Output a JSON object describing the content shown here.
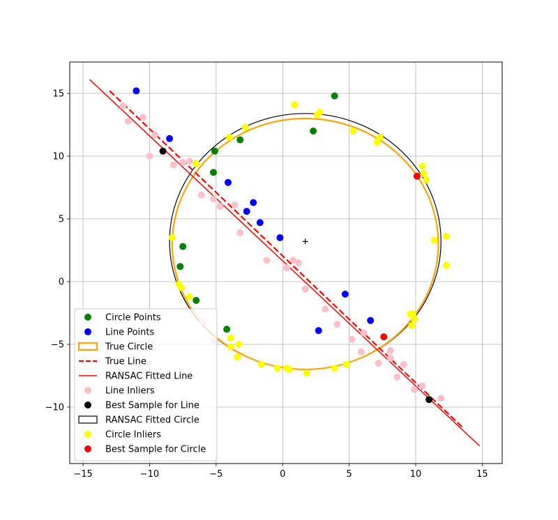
{
  "chart_data": {
    "type": "scatter",
    "title": "",
    "xlabel": "",
    "ylabel": "",
    "xlim": [
      -16,
      16.5
    ],
    "ylim": [
      -14.5,
      17.5
    ],
    "xticks": [
      -15,
      -10,
      -5,
      0,
      5,
      10,
      15
    ],
    "yticks": [
      -10,
      -5,
      0,
      5,
      10,
      15
    ],
    "x_tick_labels": [
      "−15",
      "−10",
      "−5",
      "0",
      "5",
      "10",
      "15"
    ],
    "y_tick_labels": [
      "−10",
      "−5",
      "0",
      "5",
      "10",
      "15"
    ],
    "grid": true,
    "legend_position": "lower-left",
    "center_marker": {
      "x": 1.7,
      "y": 3.2,
      "symbol": "+"
    },
    "true_circle": {
      "cx": 1.7,
      "cy": 3.0,
      "r": 10.0,
      "color": "#ffa500"
    },
    "fitted_circle": {
      "cx": 1.7,
      "cy": 3.2,
      "r": 10.2,
      "color": "#000000"
    },
    "true_line": {
      "x": [
        -13.0,
        13.5
      ],
      "y": [
        15.2,
        -11.6
      ],
      "color": "#ff0000"
    },
    "fitted_line": {
      "x": [
        -14.5,
        14.8
      ],
      "y": [
        16.1,
        -13.1
      ],
      "color": "#ff0000"
    },
    "series": [
      {
        "name": "Line Inliers",
        "color": "#ffc0cb",
        "points": [
          [
            -12.0,
            14.0
          ],
          [
            -11.6,
            12.8
          ],
          [
            -10.5,
            13.1
          ],
          [
            -9.6,
            11.7
          ],
          [
            -10.0,
            10.0
          ],
          [
            -8.2,
            9.3
          ],
          [
            -7.5,
            9.5
          ],
          [
            -7.0,
            9.6
          ],
          [
            -6.1,
            6.9
          ],
          [
            -5.2,
            6.6
          ],
          [
            -4.7,
            6.0
          ],
          [
            -3.6,
            6.1
          ],
          [
            -3.2,
            3.9
          ],
          [
            -1.2,
            1.7
          ],
          [
            0.3,
            1.1
          ],
          [
            0.8,
            1.7
          ],
          [
            1.2,
            1.5
          ],
          [
            1.7,
            -0.6
          ],
          [
            3.2,
            -2.2
          ],
          [
            4.1,
            -3.4
          ],
          [
            5.2,
            -4.6
          ],
          [
            5.9,
            -5.6
          ],
          [
            6.1,
            -4.1
          ],
          [
            7.2,
            -6.5
          ],
          [
            8.1,
            -5.5
          ],
          [
            8.1,
            -6.1
          ],
          [
            8.6,
            -7.6
          ],
          [
            9.1,
            -6.6
          ],
          [
            9.9,
            -8.6
          ],
          [
            10.5,
            -8.3
          ],
          [
            11.9,
            -9.3
          ],
          [
            -5.1,
            -4.7
          ],
          [
            -6.0,
            -3.2
          ]
        ]
      },
      {
        "name": "Circle Points",
        "color": "#008000",
        "points": [
          [
            3.9,
            14.8
          ],
          [
            2.3,
            12.0
          ],
          [
            -5.1,
            10.4
          ],
          [
            -3.2,
            11.3
          ],
          [
            -5.2,
            8.7
          ],
          [
            -7.5,
            2.8
          ],
          [
            -7.7,
            1.2
          ],
          [
            -6.5,
            -1.5
          ],
          [
            -4.2,
            -3.8
          ]
        ]
      },
      {
        "name": "Line Points",
        "color": "#0000ff",
        "points": [
          [
            -11.0,
            15.2
          ],
          [
            -8.5,
            11.4
          ],
          [
            -4.1,
            7.9
          ],
          [
            -2.2,
            6.3
          ],
          [
            -2.7,
            5.6
          ],
          [
            -1.7,
            4.7
          ],
          [
            -0.2,
            3.5
          ],
          [
            4.7,
            -1.0
          ],
          [
            2.7,
            -3.9
          ],
          [
            6.6,
            -3.1
          ]
        ]
      },
      {
        "name": "Circle Inliers",
        "color": "#ffff00",
        "points": [
          [
            0.9,
            14.1
          ],
          [
            2.6,
            13.3
          ],
          [
            2.8,
            13.5
          ],
          [
            5.3,
            12.0
          ],
          [
            -2.8,
            12.3
          ],
          [
            -4.0,
            11.5
          ],
          [
            7.1,
            11.1
          ],
          [
            7.3,
            11.5
          ],
          [
            10.5,
            9.2
          ],
          [
            10.6,
            8.6
          ],
          [
            10.8,
            8.1
          ],
          [
            -6.5,
            9.4
          ],
          [
            -8.3,
            3.5
          ],
          [
            11.4,
            3.3
          ],
          [
            12.3,
            3.6
          ],
          [
            12.3,
            1.3
          ],
          [
            -7.8,
            -0.2
          ],
          [
            -7.6,
            -0.5
          ],
          [
            -7.0,
            -1.2
          ],
          [
            9.6,
            -2.6
          ],
          [
            9.8,
            -2.6
          ],
          [
            9.9,
            -3.0
          ],
          [
            9.7,
            -3.5
          ],
          [
            -3.9,
            -4.5
          ],
          [
            -3.3,
            -5.0
          ],
          [
            -3.9,
            -5.2
          ],
          [
            -3.4,
            -6.0
          ],
          [
            -1.6,
            -6.6
          ],
          [
            -0.4,
            -6.9
          ],
          [
            0.3,
            -6.9
          ],
          [
            0.5,
            -7.0
          ],
          [
            1.8,
            -7.3
          ],
          [
            3.9,
            -6.9
          ],
          [
            4.8,
            -6.6
          ]
        ]
      },
      {
        "name": "Best Sample for Line",
        "color": "#000000",
        "points": [
          [
            -9.0,
            10.4
          ],
          [
            11.0,
            -9.4
          ]
        ]
      },
      {
        "name": "Best Sample for Circle",
        "color": "#ff0000",
        "points": [
          [
            10.1,
            8.4
          ],
          [
            7.6,
            -4.4
          ]
        ]
      }
    ],
    "legend": [
      {
        "label": "Circle Points",
        "kind": "dot",
        "color": "#008000"
      },
      {
        "label": "Line Points",
        "kind": "dot",
        "color": "#0000ff"
      },
      {
        "label": "True Circle",
        "kind": "rect",
        "color": "#ffa500"
      },
      {
        "label": "True Line",
        "kind": "dashed",
        "color": "#ff0000"
      },
      {
        "label": "RANSAC Fitted Line",
        "kind": "solid",
        "color": "#ff0000"
      },
      {
        "label": "Line Inliers",
        "kind": "dot",
        "color": "#ffc0cb"
      },
      {
        "label": "Best Sample for Line",
        "kind": "dot",
        "color": "#000000"
      },
      {
        "label": "RANSAC Fitted Circle",
        "kind": "rect",
        "color": "#000000"
      },
      {
        "label": "Circle Inliers",
        "kind": "dot",
        "color": "#ffff00"
      },
      {
        "label": "Best Sample for Circle",
        "kind": "dot",
        "color": "#ff0000"
      }
    ]
  }
}
